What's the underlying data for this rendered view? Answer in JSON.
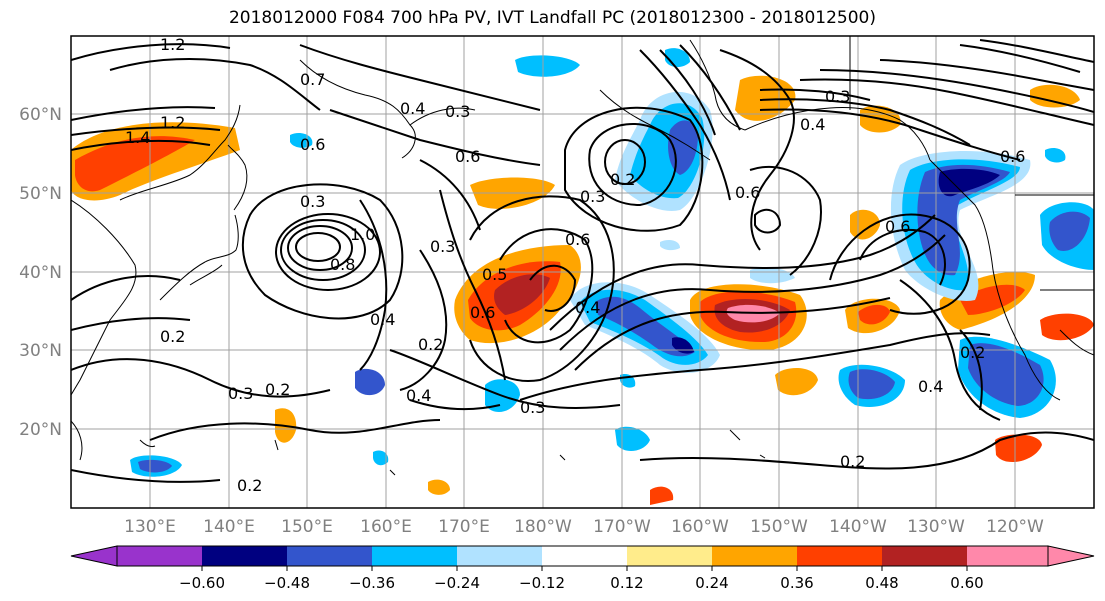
{
  "title": "2018012000 F084 700 hPa PV, IVT Landfall PC (2018012300 - 2018012500)",
  "map": {
    "lon_labels": [
      "130°E",
      "140°E",
      "150°E",
      "160°E",
      "170°E",
      "180°W",
      "170°W",
      "160°W",
      "150°W",
      "140°W",
      "130°W",
      "120°W"
    ],
    "lat_labels": [
      "60°N",
      "50°N",
      "40°N",
      "30°N",
      "20°N"
    ],
    "contour_labels": [
      {
        "text": "1.2"
      },
      {
        "text": "1.4"
      },
      {
        "text": "1.2"
      },
      {
        "text": "0.7"
      },
      {
        "text": "0.3"
      },
      {
        "text": "0.6"
      },
      {
        "text": "0.3"
      },
      {
        "text": "0.4"
      },
      {
        "text": "0.2"
      },
      {
        "text": "0.3"
      },
      {
        "text": "0.3"
      },
      {
        "text": "0.6"
      },
      {
        "text": "0.3"
      },
      {
        "text": "0.4"
      },
      {
        "text": "0.6"
      },
      {
        "text": "0.5"
      },
      {
        "text": "0.4"
      },
      {
        "text": "0.2"
      },
      {
        "text": "0.4"
      },
      {
        "text": "0.3"
      },
      {
        "text": "0.2"
      },
      {
        "text": "0.4"
      },
      {
        "text": "0.3"
      },
      {
        "text": "0.6"
      },
      {
        "text": "0.2"
      },
      {
        "text": "0.6"
      },
      {
        "text": "0.2"
      },
      {
        "text": "0.2"
      },
      {
        "text": "0.4"
      },
      {
        "text": "0.2"
      },
      {
        "text": "0.6"
      },
      {
        "text": "0.8"
      },
      {
        "text": "1.0"
      },
      {
        "text": "0.6"
      }
    ]
  },
  "colorbar": {
    "tick_labels": [
      "−0.60",
      "−0.48",
      "−0.36",
      "−0.24",
      "−0.12",
      "0.12",
      "0.24",
      "0.36",
      "0.48",
      "0.60"
    ],
    "colors": [
      "#9933cc",
      "#000080",
      "#3355cc",
      "#00bfff",
      "#b0e2ff",
      "#ffffff",
      "#ffec8b",
      "#ffa500",
      "#ff4000",
      "#b22222",
      "#ff88aa"
    ]
  },
  "shading_colors": {
    "neg_light": "#b0e2ff",
    "neg1": "#00bfff",
    "neg2": "#3355cc",
    "neg3": "#000080",
    "pos_light": "#ffec8b",
    "pos1": "#ffa500",
    "pos2": "#ff4000",
    "pos3": "#b22222",
    "pos4": "#ff88aa"
  }
}
